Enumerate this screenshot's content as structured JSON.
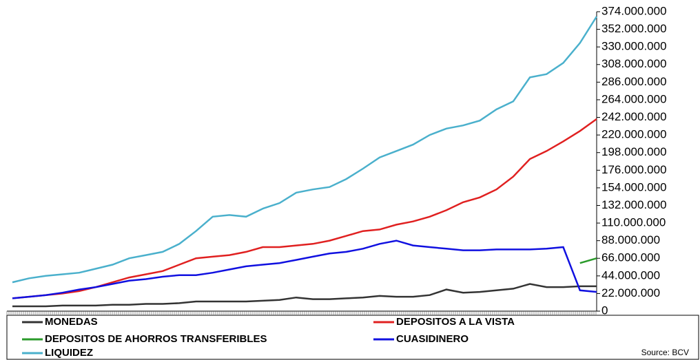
{
  "chart_data": {
    "type": "line",
    "x": [
      null,
      null,
      null,
      null,
      null,
      null,
      null,
      null,
      null,
      null,
      null,
      null,
      null,
      null,
      null,
      null,
      null,
      null,
      null,
      null,
      null,
      null,
      null,
      null,
      null,
      null,
      null,
      null,
      null,
      null,
      null,
      null,
      null,
      null,
      null,
      null
    ],
    "series": [
      {
        "name": "MONEDAS",
        "color": "#333333",
        "values": [
          6000000,
          6000000,
          6000000,
          7000000,
          7000000,
          7000000,
          8000000,
          8000000,
          9000000,
          9000000,
          10000000,
          12000000,
          12000000,
          12000000,
          12000000,
          13000000,
          14000000,
          17000000,
          15000000,
          15000000,
          16000000,
          17000000,
          19000000,
          18000000,
          18000000,
          20000000,
          27000000,
          23000000,
          24000000,
          26000000,
          28000000,
          34000000,
          30000000,
          30000000,
          31000000,
          31000000
        ]
      },
      {
        "name": "DEPOSITOS A LA VISTA",
        "color": "#e02020",
        "values": [
          16000000,
          18000000,
          20000000,
          22000000,
          25000000,
          30000000,
          36000000,
          42000000,
          46000000,
          50000000,
          58000000,
          66000000,
          68000000,
          70000000,
          74000000,
          80000000,
          80000000,
          82000000,
          84000000,
          88000000,
          94000000,
          100000000,
          102000000,
          108000000,
          112000000,
          118000000,
          126000000,
          136000000,
          142000000,
          152000000,
          168000000,
          190000000,
          200000000,
          212000000,
          225000000,
          240000000
        ]
      },
      {
        "name": "DEPOSITOS DE AHORROS TRANSFERIBLES",
        "color": "#2a9a2a",
        "values": [
          null,
          null,
          null,
          null,
          null,
          null,
          null,
          null,
          null,
          null,
          null,
          null,
          null,
          null,
          null,
          null,
          null,
          null,
          null,
          null,
          null,
          null,
          null,
          null,
          null,
          null,
          null,
          null,
          null,
          null,
          null,
          null,
          null,
          null,
          60000000,
          66000000
        ]
      },
      {
        "name": "CUASIDINERO",
        "color": "#1010e0",
        "values": [
          16000000,
          18000000,
          20000000,
          23000000,
          27000000,
          30000000,
          34000000,
          38000000,
          40000000,
          43000000,
          45000000,
          45000000,
          48000000,
          52000000,
          56000000,
          58000000,
          60000000,
          64000000,
          68000000,
          72000000,
          74000000,
          78000000,
          84000000,
          88000000,
          82000000,
          80000000,
          78000000,
          76000000,
          76000000,
          77000000,
          77000000,
          77000000,
          78000000,
          80000000,
          26000000,
          24000000
        ]
      },
      {
        "name": "LIQUIDEZ",
        "color": "#4ab0cc",
        "values": [
          36000000,
          41000000,
          44000000,
          46000000,
          48000000,
          53000000,
          58000000,
          66000000,
          70000000,
          74000000,
          84000000,
          100000000,
          118000000,
          120000000,
          118000000,
          128000000,
          135000000,
          148000000,
          152000000,
          155000000,
          165000000,
          178000000,
          192000000,
          200000000,
          208000000,
          220000000,
          228000000,
          232000000,
          238000000,
          252000000,
          262000000,
          292000000,
          296000000,
          310000000,
          335000000,
          368000000
        ]
      }
    ],
    "ylim": [
      0,
      374000000
    ],
    "yticks": [
      0,
      {
        "value": 22000000,
        "label": "22.000.000"
      },
      {
        "value": 44000000,
        "label": "44.000.000"
      },
      {
        "value": 66000000,
        "label": "66.000.000"
      },
      {
        "value": 88000000,
        "label": "88.000.000"
      },
      {
        "value": 110000000,
        "label": "110.000.000"
      },
      {
        "value": 132000000,
        "label": "132.000.000"
      },
      {
        "value": 154000000,
        "label": "154.000.000"
      },
      {
        "value": 176000000,
        "label": "176.000.000"
      },
      {
        "value": 198000000,
        "label": "198.000.000"
      },
      {
        "value": 220000000,
        "label": "220.000.000"
      },
      {
        "value": 242000000,
        "label": "242.000.000"
      },
      {
        "value": 264000000,
        "label": "264.000.000"
      },
      {
        "value": 286000000,
        "label": "286.000.000"
      },
      {
        "value": 308000000,
        "label": "308.000.000"
      },
      {
        "value": 330000000,
        "label": "330.000.000"
      },
      {
        "value": 352000000,
        "label": "352.000.000"
      },
      {
        "value": 374000000,
        "label": "374.000.000"
      }
    ],
    "source": "Source: BCV"
  }
}
